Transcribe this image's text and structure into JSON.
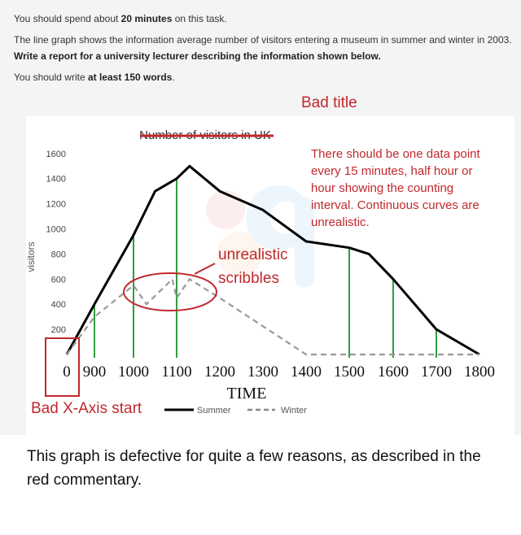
{
  "task": {
    "line1_pre": "You should spend about ",
    "line1_bold": "20 minutes",
    "line1_post": " on this task.",
    "line2": "The line graph shows the information average number of visitors entering a museum in summer and winter in 2003.",
    "line3": "Write a report for a university lecturer describing the information shown below.",
    "line4_pre": "You should write ",
    "line4_bold": "at least 150 words",
    "line4_post": "."
  },
  "annotations": {
    "color": "#c0282d",
    "bad_title": "Bad title",
    "data_point_note": [
      "There should be one data point",
      "every 15 minutes, half hour or",
      "hour showing the counting",
      "interval. Continuous curves are",
      "unrealistic."
    ],
    "scribbles_note": [
      "unrealistic",
      "scribbles"
    ],
    "bad_x_axis": "Bad X-Axis start"
  },
  "chart_data": {
    "type": "line",
    "title": "Number of visitors in UK",
    "title_struck_through": true,
    "xlabel": "TIME",
    "ylabel": "visitors",
    "x_tick_labels": [
      "0",
      "900",
      "1000",
      "1100",
      "1200",
      "1300",
      "1400",
      "1500",
      "1600",
      "1700",
      "1800"
    ],
    "y_ticks": [
      200,
      400,
      600,
      800,
      1000,
      1200,
      1400,
      1600
    ],
    "ylim": [
      0,
      1700
    ],
    "legend_position": "bottom",
    "series": [
      {
        "name": "Summer",
        "style": "solid",
        "color": "#000000",
        "points": [
          [
            0,
            0
          ],
          [
            900,
            400
          ],
          [
            1000,
            950
          ],
          [
            1050,
            1300
          ],
          [
            1100,
            1400
          ],
          [
            1130,
            1500
          ],
          [
            1200,
            1300
          ],
          [
            1300,
            1150
          ],
          [
            1400,
            900
          ],
          [
            1500,
            850
          ],
          [
            1545,
            800
          ],
          [
            1600,
            600
          ],
          [
            1700,
            200
          ],
          [
            1800,
            0
          ]
        ]
      },
      {
        "name": "Winter",
        "style": "dashed",
        "color": "#999999",
        "points": [
          [
            0,
            0
          ],
          [
            900,
            300
          ],
          [
            1000,
            550
          ],
          [
            1030,
            400
          ],
          [
            1090,
            600
          ],
          [
            1100,
            450
          ],
          [
            1130,
            600
          ],
          [
            1200,
            450
          ],
          [
            1400,
            0
          ],
          [
            1800,
            0
          ]
        ]
      }
    ],
    "vertical_markers": [
      900,
      1000,
      1100,
      1500,
      1600,
      1700
    ],
    "marker_color": "#2e9e3e"
  },
  "caption": "This graph is defective for quite a few reasons, as described in the red commentary."
}
